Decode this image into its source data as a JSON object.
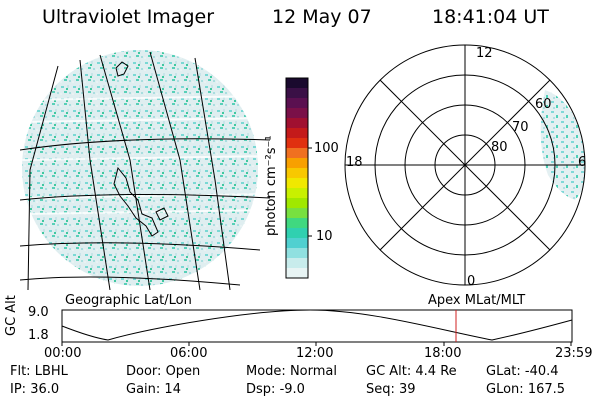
{
  "header": {
    "instrument": "Ultraviolet Imager",
    "date": "12 May 07",
    "time": "18:41:04 UT"
  },
  "geo_panel": {
    "label": "Geographic Lat/Lon"
  },
  "colorbar": {
    "unit": "photon cm⁻²s⁻¹",
    "ticks": [
      "100",
      "10"
    ],
    "colors": [
      "#1a0a2e",
      "#3a1046",
      "#5a1050",
      "#7a1048",
      "#a01030",
      "#c41a1a",
      "#e03010",
      "#f07020",
      "#f8a000",
      "#f8c800",
      "#f0e800",
      "#c8f000",
      "#a0e800",
      "#78e040",
      "#40d880",
      "#30d0b0",
      "#50d0d0",
      "#90e0e0",
      "#c8ecec",
      "#e8f4f4"
    ]
  },
  "polar_panel": {
    "label": "Apex MLat/MLT",
    "mlt_labels": [
      "12",
      "18",
      "6",
      "0"
    ],
    "lat_labels": [
      "60",
      "70",
      "80"
    ]
  },
  "timeline": {
    "axis_title": "GC Alt",
    "y_ticks": [
      "9.0",
      "1.8"
    ],
    "x_ticks": [
      "00:00",
      "06:00",
      "12:00",
      "18:00",
      "23:59"
    ]
  },
  "footer": {
    "rows": [
      [
        {
          "label": "Flt:",
          "value": "LBHL"
        },
        {
          "label": "Door:",
          "value": "Open"
        },
        {
          "label": "Mode:",
          "value": "Normal"
        },
        {
          "label": "GC Alt:",
          "value": "4.4 Re"
        },
        {
          "label": "GLat:",
          "value": "-40.4"
        }
      ],
      [
        {
          "label": "IP:",
          "value": "36.0"
        },
        {
          "label": "Gain:",
          "value": "14"
        },
        {
          "label": "Dsp:",
          "value": "-9.0"
        },
        {
          "label": "Seq:",
          "value": "39"
        },
        {
          "label": "GLon:",
          "value": "167.5"
        }
      ]
    ]
  }
}
